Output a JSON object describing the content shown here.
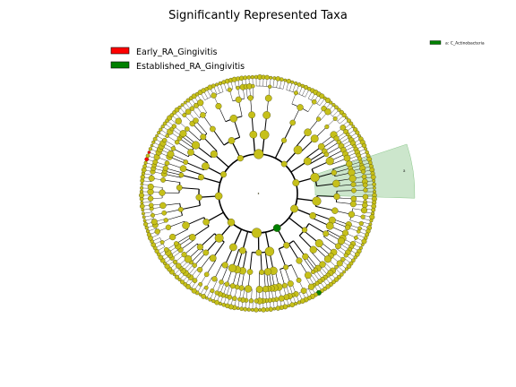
{
  "chart_data": {
    "type": "cladogram",
    "title": "Significantly Represented Taxa",
    "legend_placement": "top-left",
    "classes": [
      {
        "name": "Early_RA_Gingivitis",
        "color": "#ff0000"
      },
      {
        "name": "Established_RA_Gingivitis",
        "color": "#008000"
      }
    ],
    "default_node_color": "#c6c01a",
    "highlighted_clades": [
      {
        "letter": "a",
        "label": "a: C_Actinobacteria",
        "class": "Established_RA_Gingivitis",
        "color": "#008000",
        "shade": "#c9e5c9"
      }
    ]
  }
}
